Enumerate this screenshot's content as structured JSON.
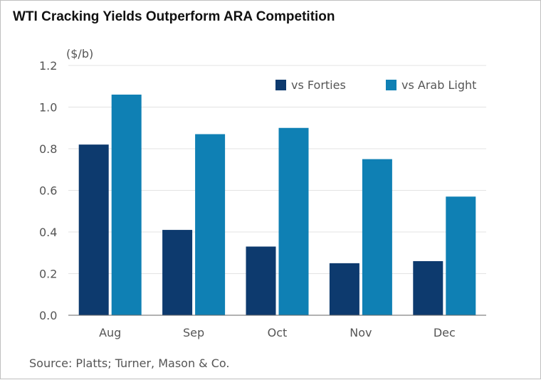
{
  "chart_data": {
    "type": "bar",
    "title": "WTI Cracking Yields Outperform ARA Competition",
    "ylabel": "($/b)",
    "xlabel": "",
    "categories": [
      "Aug",
      "Sep",
      "Oct",
      "Nov",
      "Dec"
    ],
    "series": [
      {
        "name": "vs Forties",
        "values": [
          0.82,
          0.41,
          0.33,
          0.25,
          0.26
        ],
        "color": "#0d3a6e"
      },
      {
        "name": "vs Arab Light",
        "values": [
          1.06,
          0.87,
          0.9,
          0.75,
          0.57
        ],
        "color": "#0f80b4"
      }
    ],
    "ylim": [
      0,
      1.2
    ],
    "yticks": [
      "0.0",
      "0.2",
      "0.4",
      "0.6",
      "0.8",
      "1.0",
      "1.2"
    ],
    "grid": true,
    "legend": "top-right",
    "source": "Source: Platts; Turner, Mason & Co."
  },
  "colors": {
    "grid": "#e3e3e3",
    "axis": "#666666",
    "text": "#555555"
  }
}
